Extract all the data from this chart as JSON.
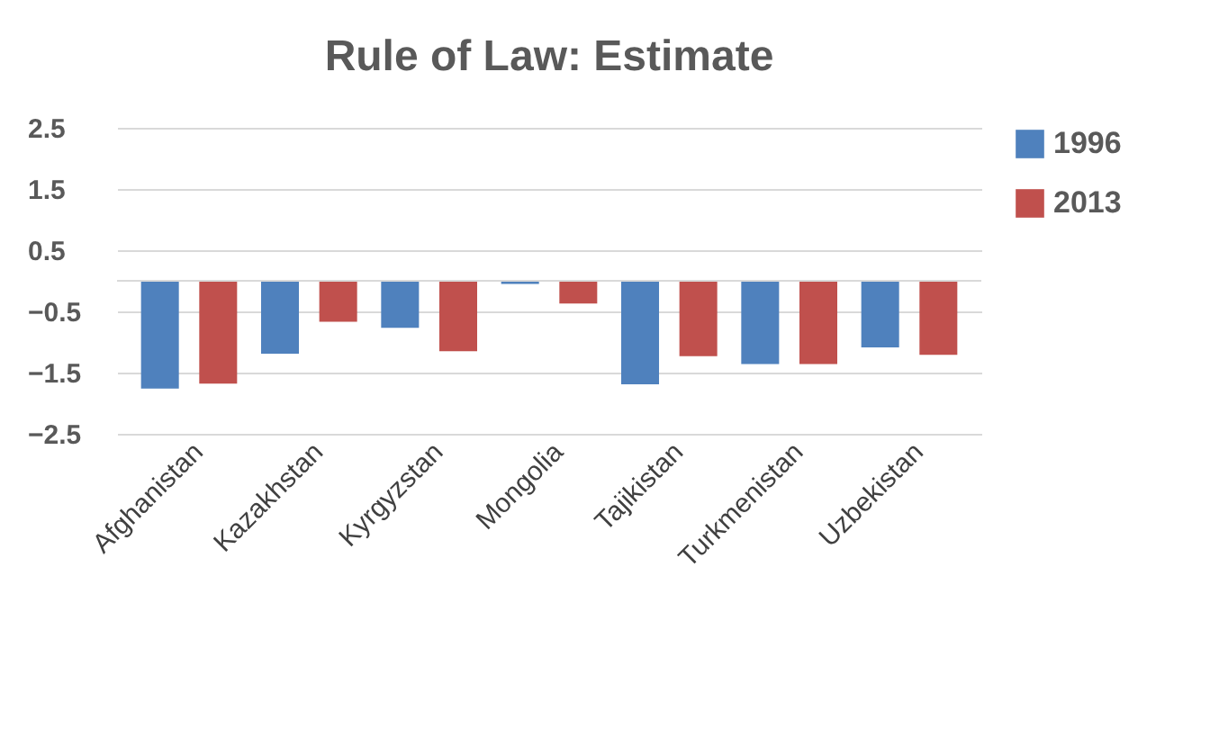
{
  "chart_data": {
    "type": "bar",
    "title": "Rule of Law: Estimate",
    "categories": [
      "Afghanistan",
      "Kazakhstan",
      "Kyrgyzstan",
      "Mongolia",
      "Tajikistan",
      "Turkmenistan",
      "Uzbekistan"
    ],
    "series": [
      {
        "name": "1996",
        "color": "#4f81bd",
        "values": [
          -1.76,
          -1.19,
          -0.77,
          -0.05,
          -1.69,
          -1.36,
          -1.09
        ]
      },
      {
        "name": "2013",
        "color": "#c0504d",
        "values": [
          -1.68,
          -0.67,
          -1.15,
          -0.37,
          -1.23,
          -1.36,
          -1.21
        ]
      }
    ],
    "ylim": [
      -2.5,
      2.5
    ],
    "yticks": [
      2.5,
      1.5,
      0.5,
      -0.5,
      -1.5,
      -2.5
    ],
    "grid": "y",
    "legend": "right",
    "ref_lines": [
      {
        "axis": "y",
        "value": 0,
        "color": "#d9d9d9"
      }
    ]
  }
}
